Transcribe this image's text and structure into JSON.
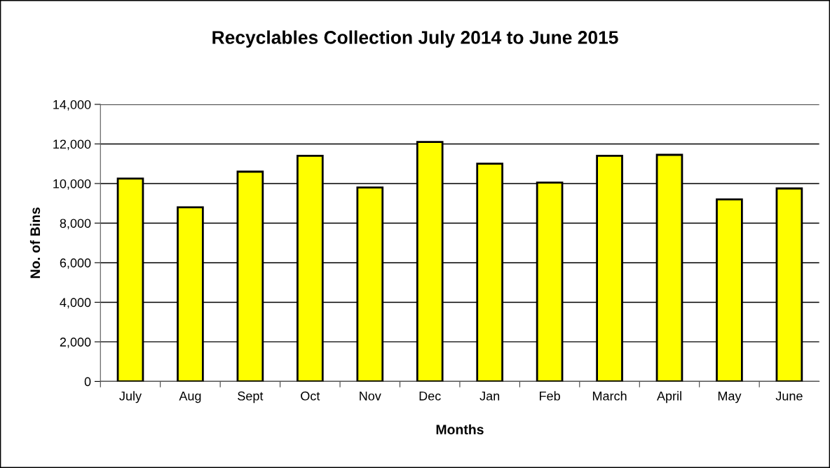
{
  "chart_data": {
    "type": "bar",
    "title": "Recyclables Collection July 2014 to June 2015",
    "xlabel": "Months",
    "ylabel": "No. of Bins",
    "categories": [
      "July",
      "Aug",
      "Sept",
      "Oct",
      "Nov",
      "Dec",
      "Jan",
      "Feb",
      "March",
      "April",
      "May",
      "June"
    ],
    "values": [
      10250,
      8800,
      10600,
      11400,
      9800,
      12100,
      11000,
      10050,
      11400,
      11450,
      9200,
      9750
    ],
    "color": "#ffff00",
    "ylim": [
      0,
      14000
    ],
    "yticks": [
      {
        "value": 0,
        "label": "0"
      },
      {
        "value": 2000,
        "label": "2,000"
      },
      {
        "value": 4000,
        "label": "4,000"
      },
      {
        "value": 6000,
        "label": "6,000"
      },
      {
        "value": 8000,
        "label": "8,000"
      },
      {
        "value": 10000,
        "label": "10,000"
      },
      {
        "value": 12000,
        "label": "12,000"
      },
      {
        "value": 14000,
        "label": "14,000"
      }
    ],
    "grid": "y",
    "legend": false
  }
}
